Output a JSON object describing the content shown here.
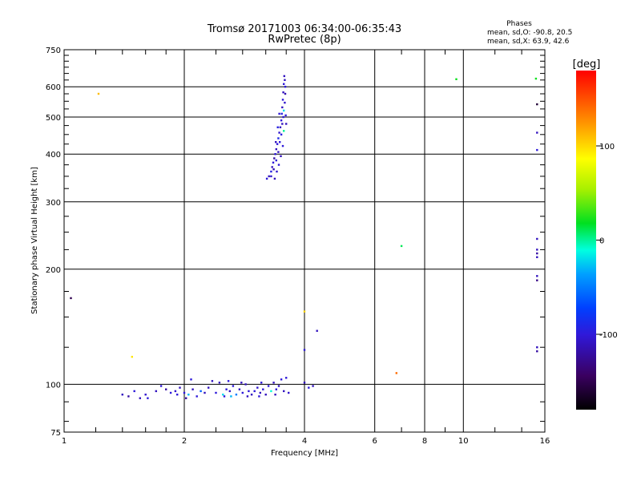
{
  "chart_data": {
    "type": "scatter",
    "title": "Tromsø 20171003 06:34:00-06:35:43",
    "subtitle": "RwPretec (8p)",
    "stats": {
      "heading": "Phases",
      "line1": "mean, sd,O: -90.8, 20.5",
      "line2": "mean, sd,X:  63.9, 42.6"
    },
    "xlabel": "Frequency [MHz]",
    "ylabel": "Stationary phase Virtual Height [km]",
    "xscale": "log",
    "yscale": "log",
    "xlim": [
      1,
      16
    ],
    "ylim": [
      75,
      750
    ],
    "xticks": [
      {
        "value": 1,
        "label": "1"
      },
      {
        "value": 2,
        "label": "2"
      },
      {
        "value": 4,
        "label": "4"
      },
      {
        "value": 6,
        "label": "6"
      },
      {
        "value": 8,
        "label": "8"
      },
      {
        "value": 10,
        "label": "10"
      },
      {
        "value": 16,
        "label": "16"
      }
    ],
    "x_major_grid": [
      2,
      4,
      6,
      8,
      10
    ],
    "x_minor_ticks": [
      1.2,
      1.4,
      1.6,
      1.8,
      2.4,
      2.8,
      3.2,
      3.6,
      7,
      9,
      12,
      14
    ],
    "yticks": [
      {
        "value": 75,
        "label": "75"
      },
      {
        "value": 100,
        "label": "100"
      },
      {
        "value": 200,
        "label": "200"
      },
      {
        "value": 300,
        "label": "300"
      },
      {
        "value": 400,
        "label": "400"
      },
      {
        "value": 500,
        "label": "500"
      },
      {
        "value": 600,
        "label": "600"
      },
      {
        "value": 750,
        "label": "750"
      }
    ],
    "y_major_grid": [
      100,
      200,
      300,
      400,
      500,
      600
    ],
    "y_minor_ticks": [
      80,
      90,
      125,
      150,
      175,
      225,
      250,
      275,
      325,
      350,
      375,
      425,
      450,
      475,
      525,
      550,
      575,
      625,
      650,
      675,
      700,
      725
    ],
    "grid": true,
    "colorbar": {
      "label": "[deg]",
      "min": -180,
      "max": 180,
      "ticks": [
        {
          "value": 100,
          "label": "100"
        },
        {
          "value": 0,
          "label": "0"
        },
        {
          "value": -100,
          "label": "-100"
        }
      ]
    },
    "points": [
      {
        "x": 1.04,
        "y": 168,
        "phase": -150
      },
      {
        "x": 1.22,
        "y": 575,
        "phase": 110
      },
      {
        "x": 1.48,
        "y": 118,
        "phase": 95
      },
      {
        "x": 6.8,
        "y": 107,
        "phase": 140
      },
      {
        "x": 7.0,
        "y": 230,
        "phase": 10
      },
      {
        "x": 4.0,
        "y": 155,
        "phase": 100
      },
      {
        "x": 4.0,
        "y": 123,
        "phase": -100
      },
      {
        "x": 4.3,
        "y": 138,
        "phase": -110
      },
      {
        "x": 9.6,
        "y": 628,
        "phase": 20
      },
      {
        "x": 15.2,
        "y": 630,
        "phase": 20
      },
      {
        "x": 15.3,
        "y": 540,
        "phase": -160
      },
      {
        "x": 15.3,
        "y": 455,
        "phase": -110
      },
      {
        "x": 15.3,
        "y": 410,
        "phase": -100
      },
      {
        "x": 15.3,
        "y": 240,
        "phase": -110
      },
      {
        "x": 15.3,
        "y": 225,
        "phase": -110
      },
      {
        "x": 15.3,
        "y": 220,
        "phase": -120
      },
      {
        "x": 15.3,
        "y": 215,
        "phase": -110
      },
      {
        "x": 15.3,
        "y": 192,
        "phase": -110
      },
      {
        "x": 15.3,
        "y": 187,
        "phase": -130
      },
      {
        "x": 15.3,
        "y": 125,
        "phase": -110
      },
      {
        "x": 15.3,
        "y": 122,
        "phase": -120
      }
    ],
    "f_region_trace": {
      "description_hidden": false,
      "samples": [
        {
          "x": 3.22,
          "y": 345,
          "phase": -100
        },
        {
          "x": 3.26,
          "y": 350,
          "phase": -110
        },
        {
          "x": 3.3,
          "y": 360,
          "phase": -95
        },
        {
          "x": 3.32,
          "y": 370,
          "phase": -110
        },
        {
          "x": 3.34,
          "y": 380,
          "phase": -100
        },
        {
          "x": 3.36,
          "y": 390,
          "phase": -120
        },
        {
          "x": 3.38,
          "y": 400,
          "phase": -100
        },
        {
          "x": 3.4,
          "y": 412,
          "phase": -110
        },
        {
          "x": 3.42,
          "y": 425,
          "phase": -100
        },
        {
          "x": 3.44,
          "y": 440,
          "phase": -90
        },
        {
          "x": 3.46,
          "y": 455,
          "phase": -105
        },
        {
          "x": 3.48,
          "y": 470,
          "phase": -110
        },
        {
          "x": 3.5,
          "y": 490,
          "phase": -100
        },
        {
          "x": 3.51,
          "y": 510,
          "phase": -95
        },
        {
          "x": 3.52,
          "y": 530,
          "phase": -110
        },
        {
          "x": 3.53,
          "y": 555,
          "phase": -100
        },
        {
          "x": 3.54,
          "y": 580,
          "phase": -110
        },
        {
          "x": 3.55,
          "y": 610,
          "phase": -100
        },
        {
          "x": 3.56,
          "y": 640,
          "phase": -110
        },
        {
          "x": 3.3,
          "y": 350,
          "phase": -105
        },
        {
          "x": 3.35,
          "y": 365,
          "phase": -115
        },
        {
          "x": 3.4,
          "y": 385,
          "phase": -100
        },
        {
          "x": 3.44,
          "y": 405,
          "phase": -110
        },
        {
          "x": 3.47,
          "y": 430,
          "phase": -100
        },
        {
          "x": 3.5,
          "y": 450,
          "phase": -95
        },
        {
          "x": 3.52,
          "y": 480,
          "phase": -110
        },
        {
          "x": 3.54,
          "y": 500,
          "phase": -100
        },
        {
          "x": 3.55,
          "y": 520,
          "phase": -20
        },
        {
          "x": 3.57,
          "y": 545,
          "phase": -105
        },
        {
          "x": 3.58,
          "y": 575,
          "phase": -115
        },
        {
          "x": 3.58,
          "y": 600,
          "phase": -100
        },
        {
          "x": 3.57,
          "y": 625,
          "phase": -110
        },
        {
          "x": 3.55,
          "y": 460,
          "phase": 0
        },
        {
          "x": 3.53,
          "y": 420,
          "phase": -100
        },
        {
          "x": 3.49,
          "y": 395,
          "phase": -110
        },
        {
          "x": 3.45,
          "y": 375,
          "phase": -100
        },
        {
          "x": 3.41,
          "y": 360,
          "phase": -105
        },
        {
          "x": 3.37,
          "y": 345,
          "phase": -110
        },
        {
          "x": 3.59,
          "y": 505,
          "phase": -100
        },
        {
          "x": 3.6,
          "y": 480,
          "phase": -110
        },
        {
          "x": 3.46,
          "y": 510,
          "phase": -100
        },
        {
          "x": 3.43,
          "y": 470,
          "phase": -95
        },
        {
          "x": 3.39,
          "y": 430,
          "phase": -110
        }
      ]
    },
    "e_region_trace": {
      "samples": [
        {
          "x": 1.4,
          "y": 94,
          "phase": -110
        },
        {
          "x": 1.45,
          "y": 93,
          "phase": -120
        },
        {
          "x": 1.5,
          "y": 96,
          "phase": -100
        },
        {
          "x": 1.55,
          "y": 92,
          "phase": -110
        },
        {
          "x": 1.6,
          "y": 94,
          "phase": -105
        },
        {
          "x": 1.7,
          "y": 96,
          "phase": -110
        },
        {
          "x": 1.75,
          "y": 99,
          "phase": -100
        },
        {
          "x": 1.8,
          "y": 97,
          "phase": -120
        },
        {
          "x": 1.85,
          "y": 95,
          "phase": -100
        },
        {
          "x": 1.9,
          "y": 96,
          "phase": -105
        },
        {
          "x": 1.95,
          "y": 98,
          "phase": -110
        },
        {
          "x": 2.0,
          "y": 95,
          "phase": -100
        },
        {
          "x": 2.05,
          "y": 94,
          "phase": -30
        },
        {
          "x": 2.1,
          "y": 97,
          "phase": -110
        },
        {
          "x": 2.15,
          "y": 93,
          "phase": -100
        },
        {
          "x": 2.2,
          "y": 96,
          "phase": -60
        },
        {
          "x": 2.3,
          "y": 98,
          "phase": -110
        },
        {
          "x": 2.4,
          "y": 95,
          "phase": -100
        },
        {
          "x": 2.45,
          "y": 101,
          "phase": -110
        },
        {
          "x": 2.5,
          "y": 94,
          "phase": -20
        },
        {
          "x": 2.55,
          "y": 97,
          "phase": -100
        },
        {
          "x": 2.6,
          "y": 96,
          "phase": -110
        },
        {
          "x": 2.65,
          "y": 99,
          "phase": -100
        },
        {
          "x": 2.7,
          "y": 94,
          "phase": -50
        },
        {
          "x": 2.75,
          "y": 97,
          "phase": -110
        },
        {
          "x": 2.8,
          "y": 95,
          "phase": -100
        },
        {
          "x": 2.85,
          "y": 100,
          "phase": -110
        },
        {
          "x": 2.9,
          "y": 96,
          "phase": -100
        },
        {
          "x": 2.95,
          "y": 94,
          "phase": -110
        },
        {
          "x": 3.0,
          "y": 96,
          "phase": -100
        },
        {
          "x": 3.05,
          "y": 98,
          "phase": -105
        },
        {
          "x": 3.1,
          "y": 95,
          "phase": -110
        },
        {
          "x": 3.15,
          "y": 97,
          "phase": -100
        },
        {
          "x": 3.2,
          "y": 94,
          "phase": -110
        },
        {
          "x": 3.25,
          "y": 99,
          "phase": -100
        },
        {
          "x": 3.3,
          "y": 96,
          "phase": -10
        },
        {
          "x": 3.35,
          "y": 101,
          "phase": -110
        },
        {
          "x": 3.4,
          "y": 97,
          "phase": -100
        },
        {
          "x": 3.45,
          "y": 99,
          "phase": -110
        },
        {
          "x": 3.5,
          "y": 103,
          "phase": -100
        },
        {
          "x": 3.55,
          "y": 96,
          "phase": -110
        },
        {
          "x": 3.6,
          "y": 104,
          "phase": -100
        },
        {
          "x": 3.65,
          "y": 95,
          "phase": -105
        },
        {
          "x": 4.0,
          "y": 101,
          "phase": -110
        },
        {
          "x": 4.1,
          "y": 98,
          "phase": -100
        },
        {
          "x": 4.2,
          "y": 99,
          "phase": -110
        },
        {
          "x": 2.08,
          "y": 103,
          "phase": -100
        },
        {
          "x": 2.35,
          "y": 102,
          "phase": -110
        },
        {
          "x": 2.58,
          "y": 102,
          "phase": -100
        },
        {
          "x": 2.78,
          "y": 101,
          "phase": -110
        },
        {
          "x": 3.12,
          "y": 101,
          "phase": -100
        },
        {
          "x": 1.92,
          "y": 94,
          "phase": -100
        },
        {
          "x": 2.25,
          "y": 95,
          "phase": -110
        },
        {
          "x": 2.52,
          "y": 93,
          "phase": -100
        },
        {
          "x": 2.88,
          "y": 93,
          "phase": -110
        },
        {
          "x": 3.08,
          "y": 93,
          "phase": -100
        },
        {
          "x": 3.38,
          "y": 94,
          "phase": -110
        },
        {
          "x": 1.62,
          "y": 92,
          "phase": -100
        },
        {
          "x": 2.02,
          "y": 92,
          "phase": -120
        },
        {
          "x": 2.62,
          "y": 93,
          "phase": -30
        }
      ]
    }
  }
}
